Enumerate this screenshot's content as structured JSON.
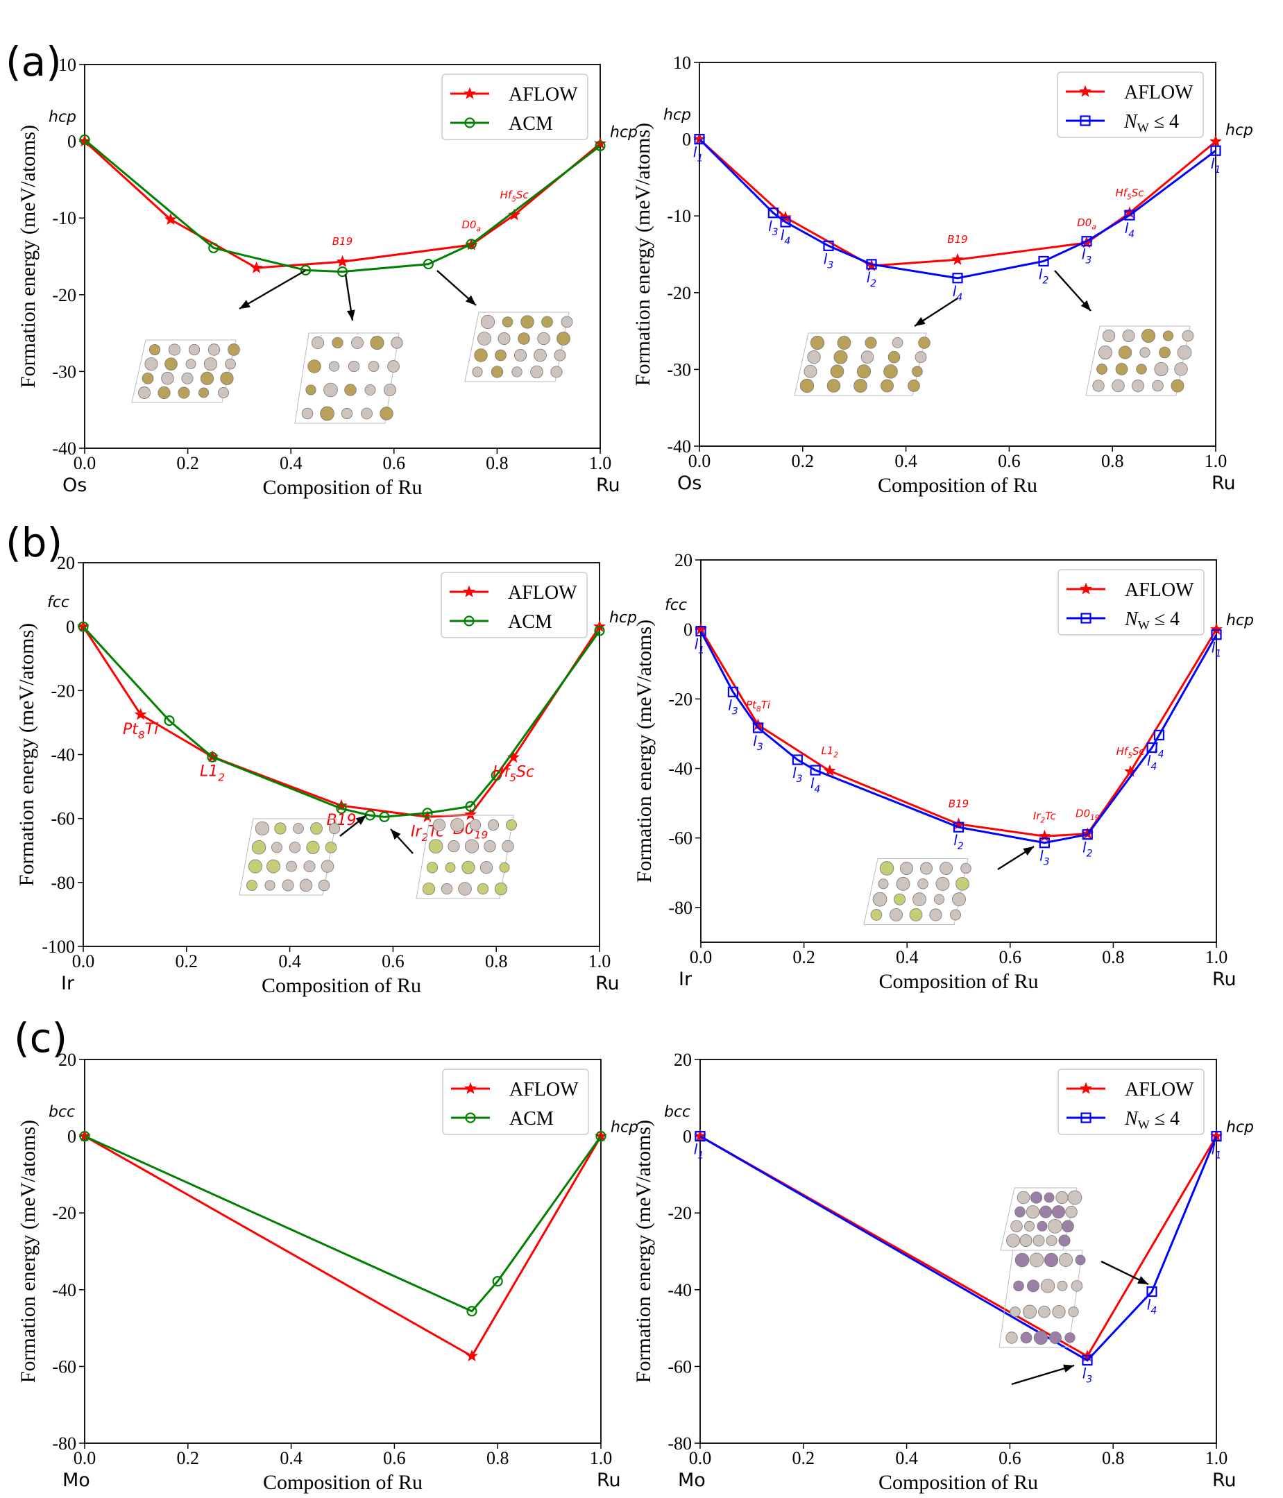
{
  "panel_labels": [
    "(a)",
    "(b)",
    "(c)"
  ],
  "colors": {
    "aflow": "#ff0000",
    "acm": "#008000",
    "nw": "#0000ff"
  },
  "chart_data": [
    {
      "type": "line",
      "panel": "(a)",
      "xlabel": "Composition of Ru",
      "ylabel": "Formation energy (meV/atoms)",
      "xlim": [
        0,
        1
      ],
      "ylim": [
        -40,
        10
      ],
      "xticks": [
        "0.0",
        "0.2",
        "0.4",
        "0.6",
        "0.8",
        "1.0"
      ],
      "yticks": [
        "10",
        "0",
        "-10",
        "-20",
        "-30",
        "-40"
      ],
      "x_end_labels": [
        "Os",
        "Ru"
      ],
      "phase_labels": [
        "hcp",
        "hcp"
      ],
      "legend": "top-right",
      "series": [
        {
          "name": "AFLOW",
          "marker": "star",
          "x": [
            0,
            0.1667,
            0.3333,
            0.5,
            0.75,
            0.8333,
            1.0
          ],
          "y": [
            0,
            -10.2,
            -16.5,
            -15.7,
            -13.5,
            -9.6,
            -0.3
          ]
        },
        {
          "name": "ACM",
          "marker": "circle",
          "x": [
            0,
            0.25,
            0.4286,
            0.5,
            0.6667,
            0.75,
            1.0
          ],
          "y": [
            0.2,
            -13.9,
            -16.8,
            -17.0,
            -16.0,
            -13.4,
            -0.6
          ]
        }
      ],
      "annotations": [
        {
          "text": "B19",
          "x": 0.5,
          "y": -15.7
        },
        {
          "text": "D0a",
          "x": 0.75,
          "y": -13.5
        },
        {
          "text": "Hf5Sc",
          "x": 0.8333,
          "y": -9.6
        }
      ]
    },
    {
      "type": "line",
      "panel": "(a)",
      "xlabel": "Composition of Ru",
      "ylabel": "Formation energy (meV/atoms)",
      "xlim": [
        0,
        1
      ],
      "ylim": [
        -40,
        10
      ],
      "xticks": [
        "0.0",
        "0.2",
        "0.4",
        "0.6",
        "0.8",
        "1.0"
      ],
      "yticks": [
        "10",
        "0",
        "-10",
        "-20",
        "-30",
        "-40"
      ],
      "x_end_labels": [
        "Os",
        "Ru"
      ],
      "phase_labels": [
        "hcp",
        "hcp"
      ],
      "legend": "top-right",
      "series": [
        {
          "name": "AFLOW",
          "marker": "star",
          "x": [
            0,
            0.1667,
            0.3333,
            0.5,
            0.75,
            0.8333,
            1.0
          ],
          "y": [
            0,
            -10.2,
            -16.5,
            -15.7,
            -13.5,
            -9.6,
            -0.3
          ]
        },
        {
          "name": "N_W ≤ 4",
          "marker": "square",
          "x": [
            0,
            0.1429,
            0.1667,
            0.25,
            0.3333,
            0.5,
            0.6667,
            0.75,
            0.8333,
            1.0
          ],
          "y": [
            0,
            -9.6,
            -10.8,
            -13.9,
            -16.3,
            -18.1,
            -15.9,
            -13.3,
            -9.9,
            -1.5
          ]
        }
      ],
      "annotations": [
        {
          "text": "B19",
          "x": 0.5,
          "y": -15.7
        },
        {
          "text": "D0a",
          "x": 0.75,
          "y": -13.5
        },
        {
          "text": "Hf5Sc",
          "x": 0.8333,
          "y": -9.6
        }
      ],
      "point_labels": [
        "l1",
        "l3",
        "l4",
        "l3",
        "l2",
        "l4",
        "l2",
        "l3",
        "l4",
        "l1"
      ]
    },
    {
      "type": "line",
      "panel": "(b)",
      "xlabel": "Composition of Ru",
      "ylabel": "Formation energy (meV/atoms)",
      "xlim": [
        0,
        1
      ],
      "ylim": [
        -100,
        20
      ],
      "xticks": [
        "0.0",
        "0.2",
        "0.4",
        "0.6",
        "0.8",
        "1.0"
      ],
      "yticks": [
        "20",
        "0",
        "-20",
        "-40",
        "-60",
        "-80",
        "-100"
      ],
      "x_end_labels": [
        "Ir",
        "Ru"
      ],
      "phase_labels": [
        "fcc",
        "hcp"
      ],
      "legend": "top-right",
      "series": [
        {
          "name": "AFLOW",
          "marker": "star",
          "x": [
            0,
            0.1111,
            0.25,
            0.5,
            0.6667,
            0.75,
            0.8333,
            1.0
          ],
          "y": [
            0,
            -27.5,
            -40.7,
            -56.0,
            -59.5,
            -58.8,
            -40.9,
            0
          ]
        },
        {
          "name": "ACM",
          "marker": "circle",
          "x": [
            0,
            0.1667,
            0.25,
            0.5,
            0.5556,
            0.5833,
            0.6667,
            0.75,
            0.8,
            1.0
          ],
          "y": [
            0,
            -29.4,
            -40.8,
            -56.9,
            -59.0,
            -59.5,
            -58.3,
            -56.2,
            -46.5,
            -1.3
          ]
        }
      ],
      "annotations": [
        {
          "text": "Pt8Ti",
          "x": 0.1111,
          "y": -27.5
        },
        {
          "text": "L12",
          "x": 0.25,
          "y": -40.7
        },
        {
          "text": "B19",
          "x": 0.5,
          "y": -56.0
        },
        {
          "text": "Ir2Tc",
          "x": 0.6667,
          "y": -59.5
        },
        {
          "text": "D019",
          "x": 0.75,
          "y": -58.8
        },
        {
          "text": "Hf5Sc",
          "x": 0.8333,
          "y": -40.9
        }
      ]
    },
    {
      "type": "line",
      "panel": "(b)",
      "xlabel": "Composition of Ru",
      "ylabel": "Formation energy (meV/atoms)",
      "xlim": [
        0,
        1
      ],
      "ylim": [
        -90,
        20
      ],
      "xticks": [
        "0.0",
        "0.2",
        "0.4",
        "0.6",
        "0.8",
        "1.0"
      ],
      "yticks": [
        "20",
        "0",
        "-20",
        "-40",
        "-60",
        "-80"
      ],
      "x_end_labels": [
        "Ir",
        "Ru"
      ],
      "phase_labels": [
        "fcc",
        "hcp"
      ],
      "legend": "top-right",
      "series": [
        {
          "name": "AFLOW",
          "marker": "star",
          "x": [
            0,
            0.1111,
            0.25,
            0.5,
            0.6667,
            0.75,
            0.8333,
            1.0
          ],
          "y": [
            0,
            -27.5,
            -40.7,
            -56.0,
            -59.5,
            -58.8,
            -40.9,
            0
          ]
        },
        {
          "name": "N_W ≤ 4",
          "marker": "square",
          "x": [
            0,
            0.0625,
            0.1111,
            0.1875,
            0.2222,
            0.5,
            0.6667,
            0.75,
            0.875,
            0.8889,
            1.0
          ],
          "y": [
            -0.5,
            -18.0,
            -28.3,
            -37.5,
            -40.5,
            -56.9,
            -61.4,
            -59.0,
            -34.0,
            -30.4,
            -1.5
          ]
        }
      ],
      "annotations": [
        {
          "text": "Pt8Ti",
          "x": 0.1111,
          "y": -27.5
        },
        {
          "text": "L12",
          "x": 0.25,
          "y": -40.7
        },
        {
          "text": "B19",
          "x": 0.5,
          "y": -56.0
        },
        {
          "text": "Ir2Tc",
          "x": 0.6667,
          "y": -59.5
        },
        {
          "text": "D019",
          "x": 0.75,
          "y": -58.8
        },
        {
          "text": "Hf5Sc",
          "x": 0.8333,
          "y": -40.9
        }
      ],
      "point_labels": [
        "l1",
        "l3",
        "l3",
        "l3",
        "l4",
        "l2",
        "l3",
        "l2",
        "l4",
        "l4",
        "l1"
      ]
    },
    {
      "type": "line",
      "panel": "(c)",
      "xlabel": "Composition of Ru",
      "ylabel": "Formation energy (meV/atoms)",
      "xlim": [
        0,
        1
      ],
      "ylim": [
        -80,
        20
      ],
      "xticks": [
        "0.0",
        "0.2",
        "0.4",
        "0.6",
        "0.8",
        "1.0"
      ],
      "yticks": [
        "20",
        "0",
        "-20",
        "-40",
        "-60",
        "-80"
      ],
      "x_end_labels": [
        "Mo",
        "Ru"
      ],
      "phase_labels": [
        "bcc",
        "hcp"
      ],
      "legend": "top-right",
      "series": [
        {
          "name": "AFLOW",
          "marker": "star",
          "x": [
            0,
            0.75,
            1.0
          ],
          "y": [
            0,
            -57.3,
            0
          ]
        },
        {
          "name": "ACM",
          "marker": "circle",
          "x": [
            0,
            0.75,
            0.8,
            1.0
          ],
          "y": [
            0,
            -45.6,
            -37.8,
            0
          ]
        }
      ]
    },
    {
      "type": "line",
      "panel": "(c)",
      "xlabel": "Composition of Ru",
      "ylabel": "Formation energy (meV/atoms)",
      "xlim": [
        0,
        1
      ],
      "ylim": [
        -80,
        20
      ],
      "xticks": [
        "0.0",
        "0.2",
        "0.4",
        "0.6",
        "0.8",
        "1.0"
      ],
      "yticks": [
        "20",
        "0",
        "-20",
        "-40",
        "-60",
        "-80"
      ],
      "x_end_labels": [
        "Mo",
        "Ru"
      ],
      "phase_labels": [
        "bcc",
        "hcp"
      ],
      "legend": "top-right",
      "series": [
        {
          "name": "AFLOW",
          "marker": "star",
          "x": [
            0,
            0.75,
            1.0
          ],
          "y": [
            0,
            -57.3,
            0
          ]
        },
        {
          "name": "N_W ≤ 4",
          "marker": "square",
          "x": [
            0,
            0.75,
            0.875,
            1.0
          ],
          "y": [
            0,
            -58.4,
            -40.5,
            0
          ]
        }
      ],
      "point_labels": [
        "l1",
        "l3",
        "l4",
        "l1"
      ]
    }
  ]
}
